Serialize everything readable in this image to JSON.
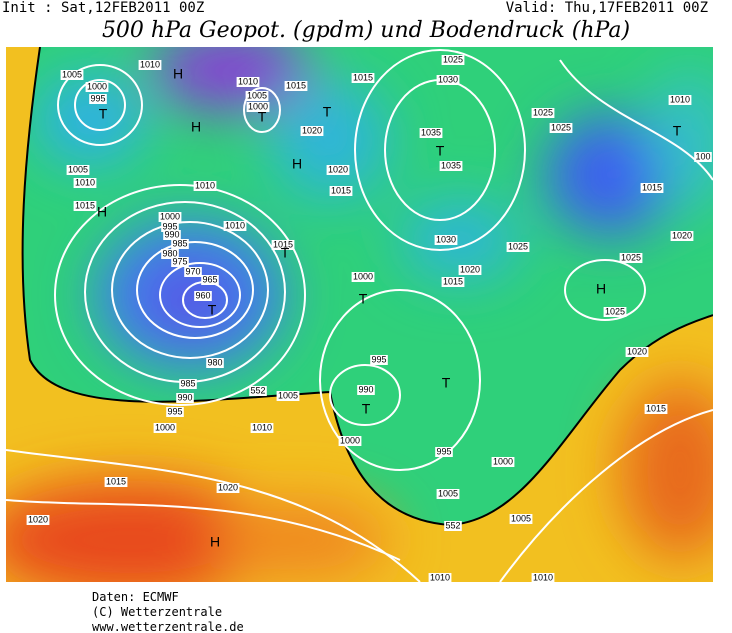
{
  "header": {
    "init": "Init : Sat,12FEB2011 00Z",
    "valid": "Valid: Thu,17FEB2011 00Z",
    "title": "500 hPa Geopot. (gpdm) und Bodendruck (hPa)"
  },
  "map": {
    "labels": [
      "1005",
      "1000",
      "995",
      "T",
      "1010",
      "H",
      "H",
      "1010",
      "1005",
      "1000",
      "T",
      "1015",
      "1005",
      "1010",
      "1015",
      "H",
      "1010",
      "1010",
      "1000",
      "995",
      "990",
      "985",
      "980",
      "975",
      "970",
      "965",
      "960",
      "T",
      "980",
      "985",
      "990",
      "995",
      "1000",
      "1005",
      "1010",
      "1015",
      "1020",
      "1020",
      "H",
      "552",
      "552",
      "1020",
      "T",
      "1015",
      "1030",
      "1025",
      "1035",
      "T",
      "1035",
      "H",
      "1020",
      "1015",
      "1015",
      "T",
      "1030",
      "1025",
      "1020",
      "1015",
      "1000",
      "T",
      "995",
      "990",
      "T",
      "T",
      "1000",
      "995",
      "1000",
      "1005",
      "1005",
      "1010",
      "1010",
      "1025",
      "1025",
      "T",
      "1010",
      "100",
      "1015",
      "1020",
      "1025",
      "H",
      "1025",
      "1020",
      "1015"
    ]
  },
  "footer": {
    "source": "Daten: ECMWF",
    "copyright": "(C) Wetterzentrale",
    "url": "www.wetterzentrale.de"
  }
}
